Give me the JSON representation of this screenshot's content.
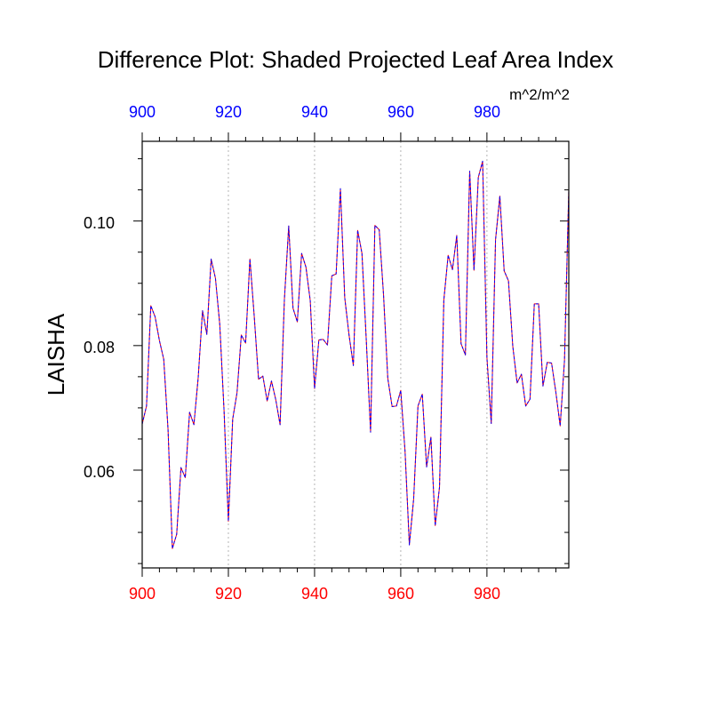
{
  "chart_data": {
    "type": "line",
    "title": "Difference Plot: Shaded Projected Leaf Area Index",
    "units": "m^2/m^2",
    "ylabel": "LAISHA",
    "xlim": [
      900,
      999
    ],
    "ylim": [
      0.0443,
      0.1128
    ],
    "x_ticks": [
      "900",
      "920",
      "940",
      "960",
      "980"
    ],
    "y_ticks": [
      "0.06",
      "0.08",
      "0.10"
    ],
    "colors": {
      "bottom_axis_labels": "#ff0000",
      "top_axis_labels": "#0000ff",
      "series_a": "#ff0000",
      "series_b": "#0000ff",
      "grid": "#b4b4b4",
      "axis": "#000000"
    },
    "x_start": 900,
    "series": [
      {
        "name": "series-a",
        "values": [
          0.0674,
          0.0703,
          0.0864,
          0.0846,
          0.0808,
          0.0778,
          0.0665,
          0.0474,
          0.0497,
          0.0604,
          0.0588,
          0.0693,
          0.0673,
          0.0749,
          0.0856,
          0.0818,
          0.0939,
          0.0908,
          0.0834,
          0.0695,
          0.0518,
          0.0682,
          0.0724,
          0.0817,
          0.0804,
          0.0939,
          0.0847,
          0.0746,
          0.0751,
          0.0711,
          0.0743,
          0.0713,
          0.0673,
          0.0874,
          0.0992,
          0.086,
          0.0838,
          0.0948,
          0.0926,
          0.0872,
          0.0731,
          0.0809,
          0.081,
          0.0801,
          0.0912,
          0.0915,
          0.1052,
          0.0877,
          0.0817,
          0.0768,
          0.0985,
          0.0948,
          0.0809,
          0.0661,
          0.0993,
          0.0986,
          0.0882,
          0.0747,
          0.0702,
          0.0703,
          0.0728,
          0.063,
          0.048,
          0.0554,
          0.0703,
          0.0722,
          0.0605,
          0.0653,
          0.0511,
          0.0573,
          0.0873,
          0.0945,
          0.0922,
          0.0977,
          0.0803,
          0.0785,
          0.108,
          0.0921,
          0.107,
          0.1096,
          0.0781,
          0.0675,
          0.097,
          0.104,
          0.092,
          0.0904,
          0.0799,
          0.074,
          0.0754,
          0.0703,
          0.0714,
          0.0867,
          0.0867,
          0.0735,
          0.0773,
          0.0772,
          0.0725,
          0.0671,
          0.0776,
          0.105
        ]
      },
      {
        "name": "series-b",
        "values": [
          0.0674,
          0.0703,
          0.0864,
          0.0846,
          0.0808,
          0.0778,
          0.0665,
          0.0474,
          0.0497,
          0.0604,
          0.0588,
          0.0693,
          0.0673,
          0.0749,
          0.0856,
          0.0818,
          0.0939,
          0.0908,
          0.0834,
          0.0695,
          0.0518,
          0.0682,
          0.0724,
          0.0817,
          0.0804,
          0.0939,
          0.0847,
          0.0746,
          0.0751,
          0.0711,
          0.0743,
          0.0713,
          0.0673,
          0.0874,
          0.0992,
          0.086,
          0.0838,
          0.0948,
          0.0926,
          0.0872,
          0.0731,
          0.0809,
          0.081,
          0.0801,
          0.0912,
          0.0915,
          0.1052,
          0.0877,
          0.0817,
          0.0768,
          0.0985,
          0.0948,
          0.0809,
          0.0661,
          0.0993,
          0.0986,
          0.0882,
          0.0747,
          0.0702,
          0.0703,
          0.0728,
          0.063,
          0.048,
          0.0554,
          0.0703,
          0.0722,
          0.0605,
          0.0653,
          0.0511,
          0.0573,
          0.0873,
          0.0945,
          0.0922,
          0.0977,
          0.0803,
          0.0785,
          0.108,
          0.0921,
          0.107,
          0.1096,
          0.0781,
          0.0675,
          0.097,
          0.104,
          0.092,
          0.0904,
          0.0799,
          0.074,
          0.0754,
          0.0703,
          0.0714,
          0.0867,
          0.0867,
          0.0735,
          0.0773,
          0.0772,
          0.0725,
          0.0671,
          0.0776,
          0.105
        ]
      }
    ]
  }
}
